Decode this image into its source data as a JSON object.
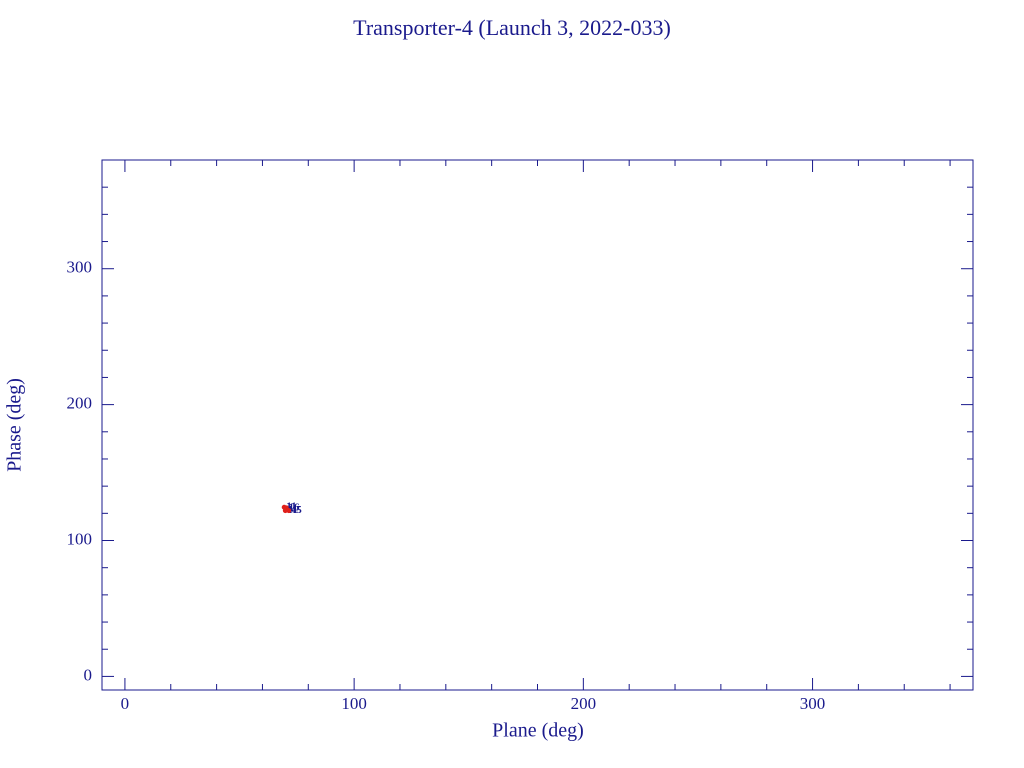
{
  "chart_data": {
    "type": "scatter",
    "title": "Transporter-4 (Launch 3, 2022-033)",
    "x_label": "Plane (deg)",
    "y_label": "Phase (deg)",
    "xlim": [
      -10,
      370
    ],
    "ylim": [
      -10,
      380
    ],
    "xticks": [
      0,
      100,
      200,
      300
    ],
    "yticks": [
      0,
      100,
      200,
      300
    ],
    "xminorticks": [
      20,
      40,
      60,
      80,
      120,
      140,
      160,
      180,
      220,
      240,
      260,
      280,
      320,
      340,
      360
    ],
    "yminorticks": [
      20,
      40,
      60,
      80,
      120,
      140,
      160,
      180,
      220,
      240,
      260,
      280,
      320,
      340,
      360
    ],
    "axis_color": "#1a1a8c",
    "series": [
      {
        "color": "#e0201b",
        "label_color": "#1a1a8c",
        "x": [
          69.5,
          70.5,
          70,
          71.5
        ],
        "y": [
          124.5,
          124,
          122,
          122
        ],
        "point_labels": [
          "11",
          "16",
          "11",
          "45"
        ]
      }
    ]
  }
}
